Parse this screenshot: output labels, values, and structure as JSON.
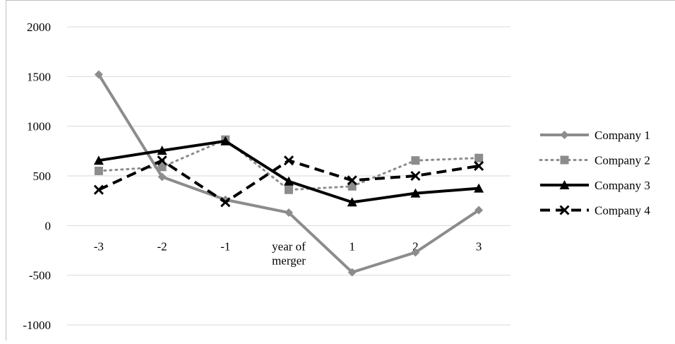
{
  "chart_data": {
    "type": "line",
    "categories": [
      "-3",
      "-2",
      "-1",
      "year of merger",
      "1",
      "2",
      "3"
    ],
    "category_lines": [
      [
        "-3"
      ],
      [
        "-2"
      ],
      [
        "-1"
      ],
      [
        "year of",
        "merger"
      ],
      [
        "1"
      ],
      [
        "2"
      ],
      [
        "3"
      ]
    ],
    "ylim": [
      -1000,
      2000
    ],
    "y_ticks": [
      2000,
      1500,
      1000,
      500,
      0,
      -500,
      -1000
    ],
    "grid": true,
    "legend_position": "right",
    "series": [
      {
        "name": "Company 1",
        "values": [
          1520,
          490,
          260,
          130,
          -470,
          -270,
          155
        ],
        "color": "#8c8c8c",
        "dash": "solid",
        "marker": "diamond"
      },
      {
        "name": "Company 2",
        "values": [
          550,
          590,
          865,
          360,
          395,
          655,
          680
        ],
        "color": "#8c8c8c",
        "dash": "dotted",
        "marker": "square"
      },
      {
        "name": "Company 3",
        "values": [
          655,
          755,
          850,
          445,
          235,
          325,
          375
        ],
        "color": "#000000",
        "dash": "solid",
        "marker": "triangle"
      },
      {
        "name": "Company 4",
        "values": [
          360,
          655,
          235,
          655,
          455,
          500,
          600
        ],
        "color": "#000000",
        "dash": "dashed",
        "marker": "x"
      }
    ]
  }
}
